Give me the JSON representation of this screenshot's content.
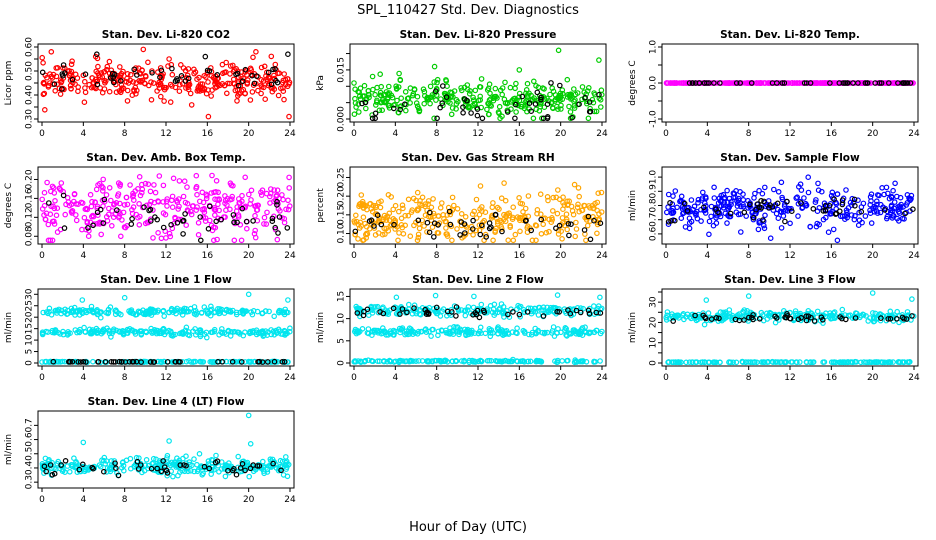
{
  "figure": {
    "title": "SPL_110427  Std. Dev. Diagnostics",
    "xlabel": "Hour of Day (UTC)",
    "xticks": [
      0,
      4,
      8,
      12,
      16,
      20,
      24
    ]
  },
  "chart_data": [
    {
      "type": "scatter",
      "title": "Stan. Dev. Li-820 CO2",
      "ylabel": "Licor ppm",
      "xlim": [
        0,
        24
      ],
      "ylim": [
        0.3,
        0.6
      ],
      "yticks": [
        0.3,
        0.35,
        0.4,
        0.45,
        0.5,
        0.55,
        0.6
      ],
      "ytick_labels": [
        "0.30",
        "",
        "0.40",
        "",
        "0.50",
        "",
        "0.60"
      ],
      "color": "#ff0000",
      "series": [
        {
          "color": "#ff0000",
          "points": 340,
          "y_center": 0.46,
          "y_spread": 0.035,
          "outliers": [
            [
              0.9,
              0.58
            ],
            [
              5.2,
              0.56
            ],
            [
              9.8,
              0.59
            ],
            [
              12.3,
              0.55
            ],
            [
              16.1,
              0.31
            ],
            [
              20.7,
              0.58
            ],
            [
              23.9,
              0.31
            ],
            [
              4.1,
              0.37
            ],
            [
              10.6,
              0.38
            ]
          ]
        },
        {
          "color": "#000000",
          "points": 45,
          "y_center": 0.47,
          "y_spread": 0.025,
          "outliers": [
            [
              5.3,
              0.57
            ],
            [
              23.8,
              0.57
            ],
            [
              15.8,
              0.56
            ]
          ]
        }
      ]
    },
    {
      "type": "scatter",
      "title": "Stan. Dev. Li-820 Pressure",
      "ylabel": "kPa",
      "xlim": [
        0,
        24
      ],
      "ylim": [
        0,
        0.022
      ],
      "yticks": [
        0.0,
        0.005,
        0.01,
        0.015,
        0.02
      ],
      "ytick_labels": [
        "0.000",
        "",
        "",
        "0.015",
        ""
      ],
      "color": "#00cc00",
      "series": [
        {
          "color": "#00cc00",
          "points": 340,
          "y_center": 0.006,
          "y_spread": 0.0025,
          "outliers": [
            [
              0.0,
              0.011
            ],
            [
              1.8,
              0.013
            ],
            [
              7.8,
              0.016
            ],
            [
              8.1,
              0.012
            ],
            [
              19.8,
              0.021
            ],
            [
              23.7,
              0.018
            ],
            [
              16.0,
              0.015
            ]
          ]
        },
        {
          "color": "#000000",
          "points": 45,
          "y_center": 0.004,
          "y_spread": 0.003,
          "outliers": []
        }
      ]
    },
    {
      "type": "scatter",
      "title": "Stan. Dev. Li-820 Temp.",
      "ylabel": "degrees C",
      "xlim": [
        0,
        24
      ],
      "ylim": [
        -1,
        1
      ],
      "yticks": [
        -1.0,
        -0.5,
        0.0,
        0.5,
        1.0
      ],
      "ytick_labels": [
        "-1.0",
        "",
        "0.0",
        "",
        "1.0"
      ],
      "color": "#ff00ff",
      "series": [
        {
          "color": "#ff00ff",
          "points": 340,
          "y_center": 0.0,
          "y_spread": 0.0,
          "outliers": []
        },
        {
          "color": "#000000",
          "points": 45,
          "y_center": 0.0,
          "y_spread": 0.0,
          "outliers": []
        }
      ]
    },
    {
      "type": "scatter",
      "title": "Stan. Dev. Amb. Box Temp.",
      "ylabel": "degrees C",
      "xlim": [
        0,
        24
      ],
      "ylim": [
        0.07,
        0.22
      ],
      "yticks": [
        0.08,
        0.12,
        0.16,
        0.2
      ],
      "ytick_labels": [
        "0.08",
        "0.12",
        "0.16",
        "0.20"
      ],
      "color": "#ff00ff",
      "series": [
        {
          "color": "#ff00ff",
          "points": 340,
          "y_center": 0.14,
          "y_spread": 0.03,
          "outliers": []
        },
        {
          "color": "#000000",
          "points": 45,
          "y_center": 0.12,
          "y_spread": 0.02,
          "outliers": []
        }
      ]
    },
    {
      "type": "scatter",
      "title": "Stan. Dev. Gas Stream RH",
      "ylabel": "percent",
      "xlim": [
        0,
        24
      ],
      "ylim": [
        0.08,
        0.27
      ],
      "yticks": [
        0.1,
        0.15,
        0.2,
        0.25
      ],
      "ytick_labels": [
        "0.10",
        "0.15",
        "0.20",
        "0.25"
      ],
      "color": "#ffa500",
      "series": [
        {
          "color": "#ffa500",
          "points": 340,
          "y_center": 0.14,
          "y_spread": 0.035,
          "outliers": []
        },
        {
          "color": "#000000",
          "points": 45,
          "y_center": 0.12,
          "y_spread": 0.02,
          "outliers": []
        }
      ]
    },
    {
      "type": "scatter",
      "title": "Stan. Dev. Sample Flow",
      "ylabel": "ml/min",
      "xlim": [
        0,
        24
      ],
      "ylim": [
        0.55,
        1.05
      ],
      "yticks": [
        0.6,
        0.7,
        0.8,
        0.9,
        1.0
      ],
      "ytick_labels": [
        "0.6",
        "0.7",
        "0.8",
        "0.9",
        "1.0"
      ],
      "color": "#0000ff",
      "series": [
        {
          "color": "#0000ff",
          "points": 340,
          "y_center": 0.78,
          "y_spread": 0.07,
          "outliers": []
        },
        {
          "color": "#000000",
          "points": 45,
          "y_center": 0.78,
          "y_spread": 0.05,
          "outliers": []
        }
      ]
    },
    {
      "type": "scatter",
      "title": "Stan. Dev. Line 1 Flow",
      "ylabel": "ml/min",
      "xlim": [
        0,
        24
      ],
      "ylim": [
        0,
        31
      ],
      "yticks": [
        0,
        5,
        10,
        15,
        20,
        25,
        30
      ],
      "ytick_labels": [
        "0",
        "5",
        "10",
        "15",
        "20",
        "25",
        "30"
      ],
      "color": "#00e5ee",
      "series": [
        {
          "color": "#00e5ee",
          "points": 200,
          "y_center": 22.5,
          "y_spread": 0.8,
          "outliers": [
            [
              3.9,
              27.5
            ],
            [
              8.0,
              28.5
            ],
            [
              20.0,
              30.0
            ],
            [
              23.8,
              27.5
            ]
          ]
        },
        {
          "color": "#00e5ee",
          "points": 200,
          "y_center": 13.5,
          "y_spread": 0.8,
          "outliers": []
        },
        {
          "color": "#00e5ee",
          "points": 150,
          "y_center": 0.5,
          "y_spread": 0.1,
          "outliers": []
        },
        {
          "color": "#000000",
          "points": 45,
          "y_center": 0.5,
          "y_spread": 0.05,
          "outliers": []
        }
      ]
    },
    {
      "type": "scatter",
      "title": "Stan. Dev. Line 2 Flow",
      "ylabel": "ml/min",
      "xlim": [
        0,
        24
      ],
      "ylim": [
        0,
        16
      ],
      "yticks": [
        0,
        5,
        10,
        15
      ],
      "ytick_labels": [
        "0",
        "5",
        "10",
        "15"
      ],
      "color": "#00e5ee",
      "series": [
        {
          "color": "#00e5ee",
          "points": 200,
          "y_center": 11.8,
          "y_spread": 0.6,
          "outliers": [
            [
              4.1,
              14.8
            ],
            [
              7.9,
              15.2
            ],
            [
              11.6,
              15.0
            ],
            [
              19.7,
              15.3
            ],
            [
              23.8,
              14.8
            ]
          ]
        },
        {
          "color": "#00e5ee",
          "points": 200,
          "y_center": 7.0,
          "y_spread": 0.5,
          "outliers": []
        },
        {
          "color": "#00e5ee",
          "points": 150,
          "y_center": 0.4,
          "y_spread": 0.1,
          "outliers": []
        },
        {
          "color": "#000000",
          "points": 45,
          "y_center": 11.5,
          "y_spread": 0.6,
          "outliers": []
        }
      ]
    },
    {
      "type": "scatter",
      "title": "Stan. Dev. Line 3 Flow",
      "ylabel": "ml/min",
      "xlim": [
        0,
        24
      ],
      "ylim": [
        0,
        35
      ],
      "yticks": [
        0,
        5,
        10,
        15,
        20,
        25,
        30,
        35
      ],
      "ytick_labels": [
        "0",
        "",
        "10",
        "",
        "20",
        "",
        "30",
        ""
      ],
      "color": "#00e5ee",
      "series": [
        {
          "color": "#00e5ee",
          "points": 250,
          "y_center": 23.0,
          "y_spread": 1.3,
          "outliers": [
            [
              3.9,
              31.0
            ],
            [
              8.0,
              33.0
            ],
            [
              20.0,
              34.5
            ],
            [
              23.8,
              31.5
            ]
          ]
        },
        {
          "color": "#00e5ee",
          "points": 150,
          "y_center": 0.4,
          "y_spread": 0.1,
          "outliers": []
        },
        {
          "color": "#000000",
          "points": 45,
          "y_center": 22.0,
          "y_spread": 1.0,
          "outliers": []
        }
      ]
    },
    {
      "type": "scatter",
      "title": "Stan. Dev. Line 4 (LT) Flow",
      "ylabel": "ml/min",
      "xlim": [
        0,
        24
      ],
      "ylim": [
        0.28,
        0.78
      ],
      "yticks": [
        0.3,
        0.4,
        0.5,
        0.6,
        0.7
      ],
      "ytick_labels": [
        "0.3",
        "0.4",
        "0.5",
        "0.6",
        "0.7"
      ],
      "color": "#00e5ee",
      "series": [
        {
          "color": "#00e5ee",
          "points": 300,
          "y_center": 0.41,
          "y_spread": 0.03,
          "outliers": [
            [
              4.0,
              0.58
            ],
            [
              12.3,
              0.59
            ],
            [
              20.0,
              0.77
            ],
            [
              20.2,
              0.57
            ]
          ]
        },
        {
          "color": "#000000",
          "points": 45,
          "y_center": 0.4,
          "y_spread": 0.025,
          "outliers": []
        }
      ]
    }
  ]
}
